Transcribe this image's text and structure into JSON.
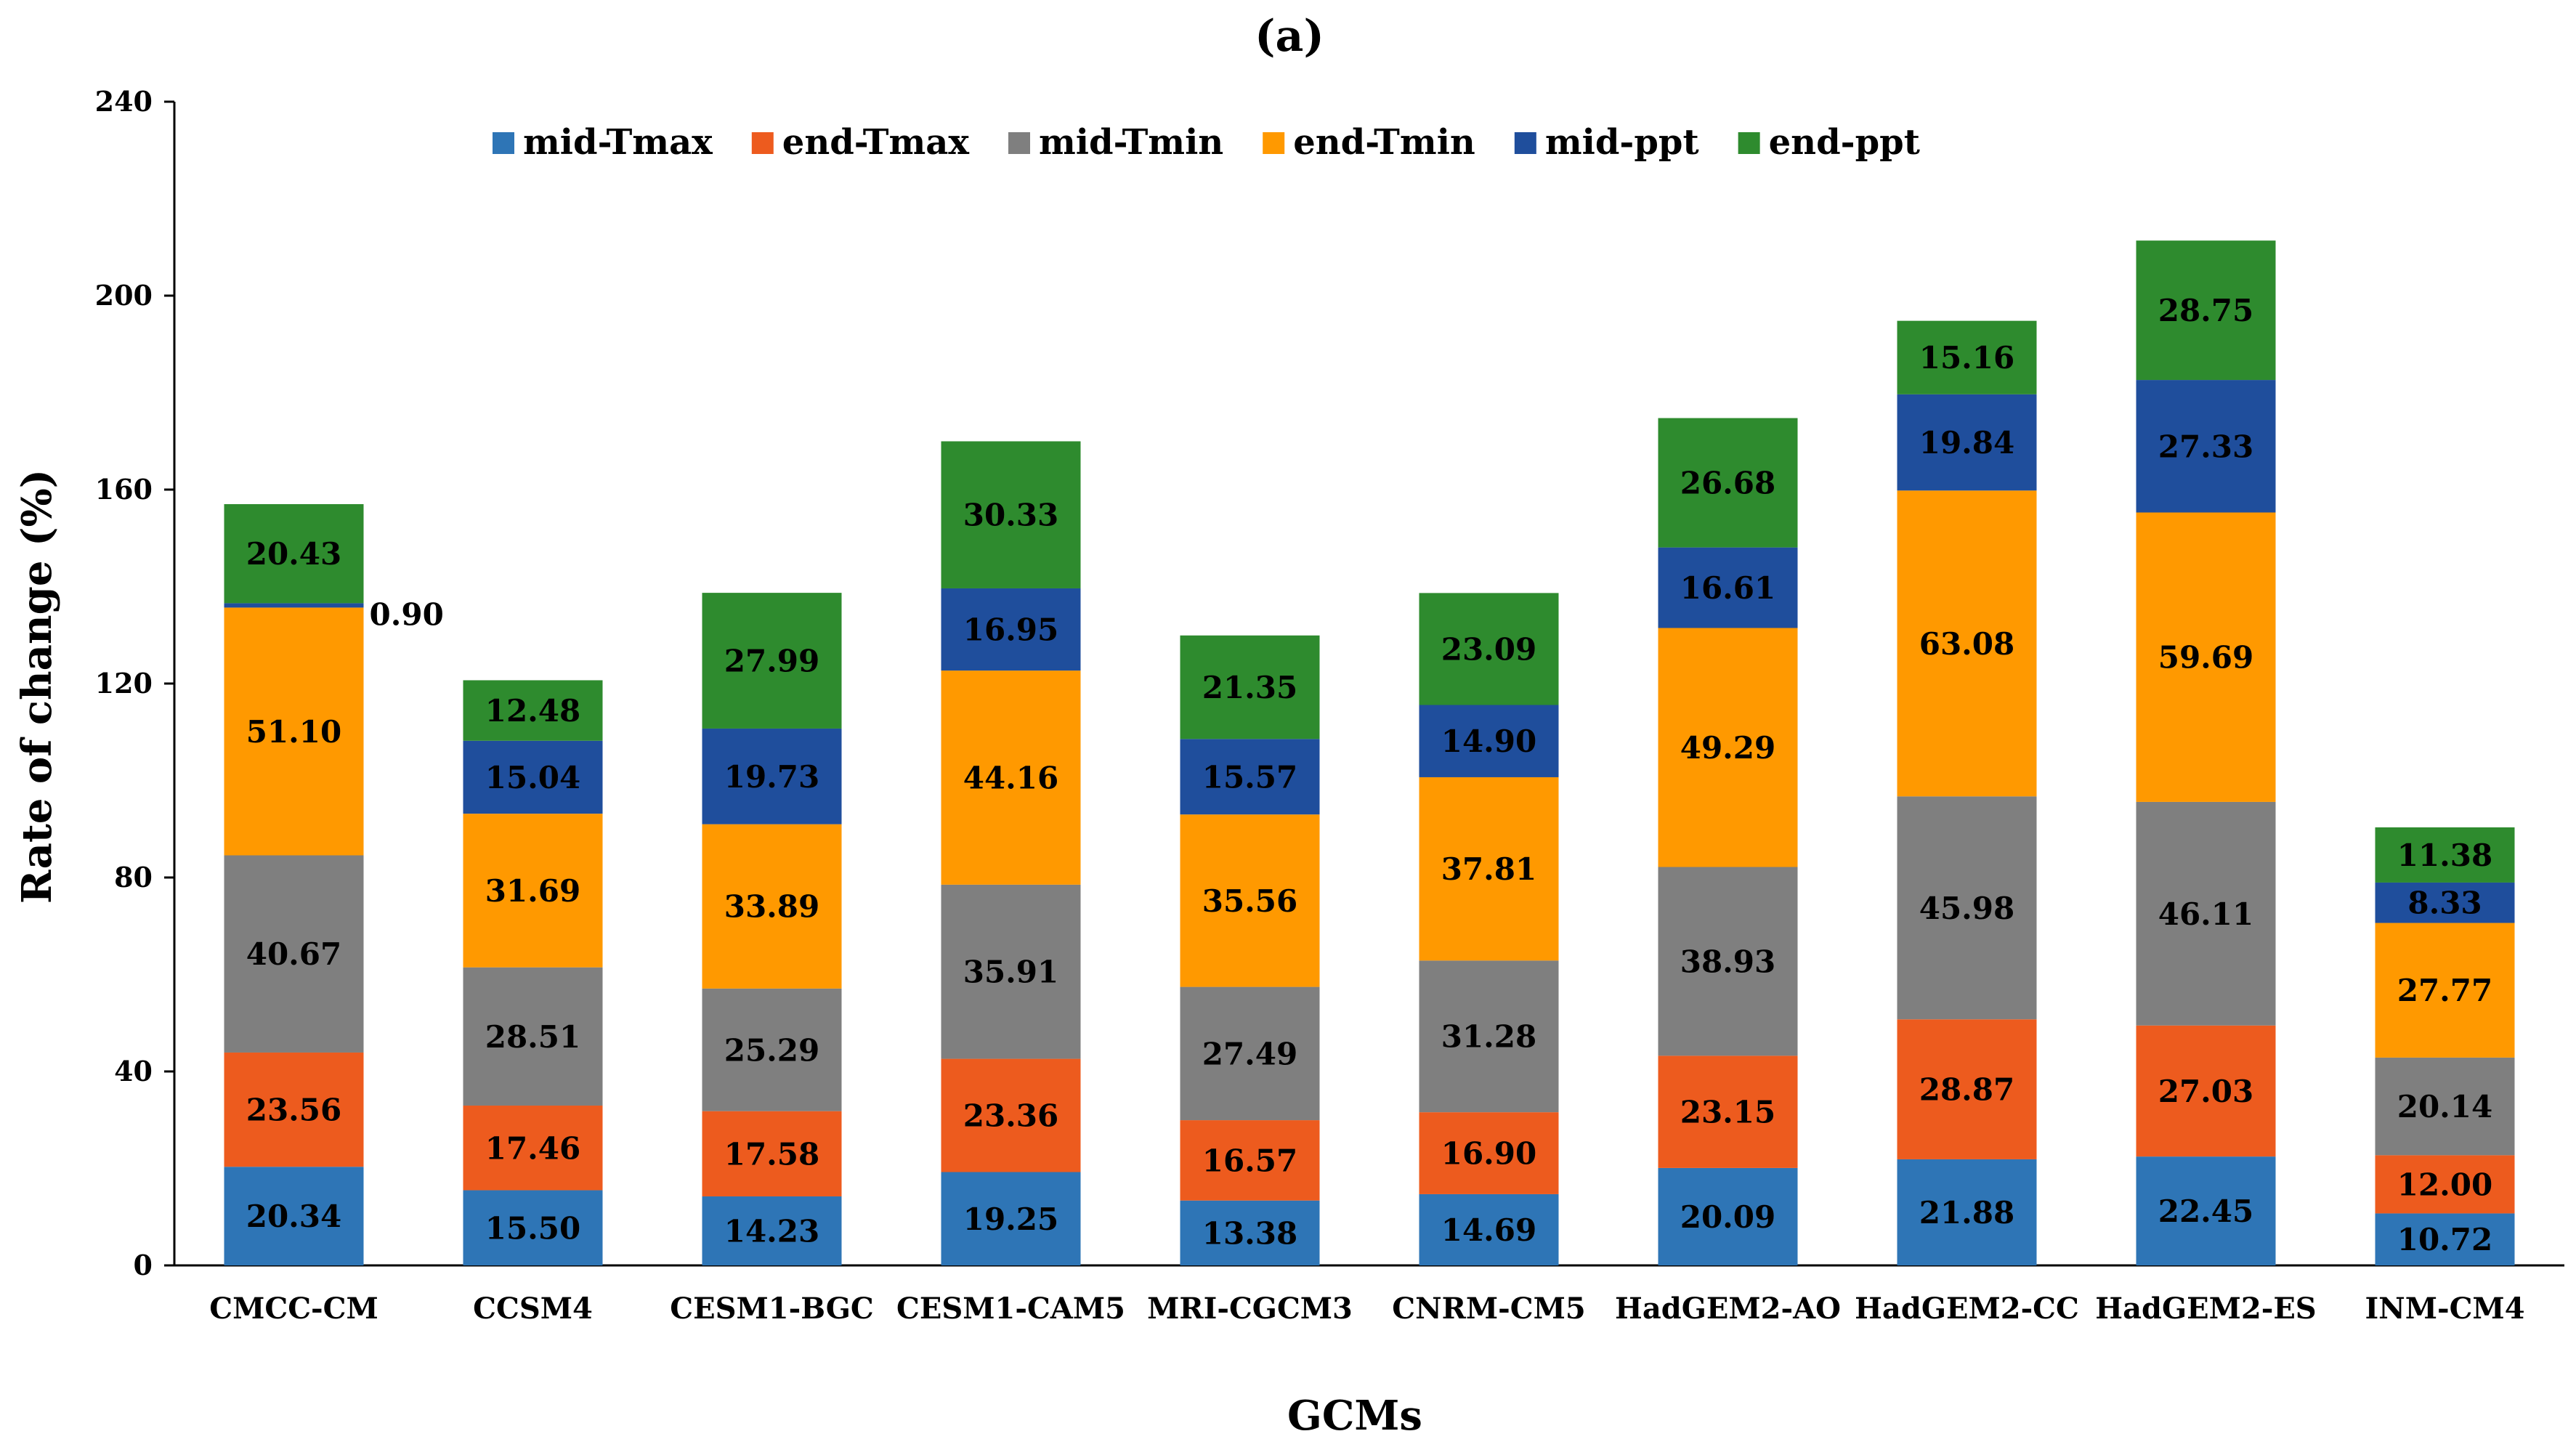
{
  "chart_data": {
    "type": "bar",
    "stacked": true,
    "title": "(a)",
    "xlabel": "GCMs",
    "ylabel": "Rate of change (%)",
    "ylim": [
      0,
      240
    ],
    "yticks": [
      0,
      40,
      80,
      120,
      160,
      200,
      240
    ],
    "legend_position": "top",
    "categories": [
      "CMCC-CM",
      "CCSM4",
      "CESM1-BGC",
      "CESM1-CAM5",
      "MRI-CGCM3",
      "CNRM-CM5",
      "HadGEM2-AO",
      "HadGEM2-CC",
      "HadGEM2-ES",
      "INM-CM4"
    ],
    "series": [
      {
        "name": "mid-Tmax",
        "color": "#2E75B6",
        "values": [
          20.34,
          15.5,
          14.23,
          19.25,
          13.38,
          14.69,
          20.09,
          21.88,
          22.45,
          10.72
        ],
        "labels": [
          "20.34",
          "15.50",
          "14.23",
          "19.25",
          "13.38",
          "14.69",
          "20.09",
          "21.88",
          "22.45",
          "10.72"
        ]
      },
      {
        "name": "end-Tmax",
        "color": "#ED5B1E",
        "values": [
          23.56,
          17.46,
          17.58,
          23.36,
          16.57,
          16.9,
          23.15,
          28.87,
          27.03,
          12.0
        ],
        "labels": [
          "23.56",
          "17.46",
          "17.58",
          "23.36",
          "16.57",
          "16.90",
          "23.15",
          "28.87",
          "27.03",
          "12.00"
        ]
      },
      {
        "name": "mid-Tmin",
        "color": "#7F7F7F",
        "values": [
          40.67,
          28.51,
          25.29,
          35.91,
          27.49,
          31.28,
          38.93,
          45.98,
          46.11,
          20.14
        ],
        "labels": [
          "40.67",
          "28.51",
          "25.29",
          "35.91",
          "27.49",
          "31.28",
          "38.93",
          "45.98",
          "46.11",
          "20.14"
        ]
      },
      {
        "name": "end-Tmin",
        "color": "#FF9900",
        "values": [
          51.1,
          31.69,
          33.89,
          44.16,
          35.56,
          37.81,
          49.29,
          63.08,
          59.69,
          27.77
        ],
        "labels": [
          "51.10",
          "31.69",
          "33.89",
          "44.16",
          "35.56",
          "37.81",
          "49.29",
          "63.08",
          "59.69",
          "27.77"
        ]
      },
      {
        "name": "mid-ppt",
        "color": "#1F4E9C",
        "values": [
          0.9,
          15.04,
          19.73,
          16.95,
          15.57,
          14.9,
          16.61,
          19.84,
          27.33,
          8.33
        ],
        "labels": [
          "0.90",
          "15.04",
          "19.73",
          "16.95",
          "15.57",
          "14.90",
          "16.61",
          "19.84",
          "27.33",
          "8.33"
        ]
      },
      {
        "name": "end-ppt",
        "color": "#2E8B2E",
        "values": [
          20.43,
          12.48,
          27.99,
          30.33,
          21.35,
          23.09,
          26.68,
          15.16,
          28.75,
          11.38
        ],
        "labels": [
          "20.43",
          "12.48",
          "27.99",
          "30.33",
          "21.35",
          "23.09",
          "26.68",
          "15.16",
          "28.75",
          "11.38"
        ]
      }
    ]
  }
}
